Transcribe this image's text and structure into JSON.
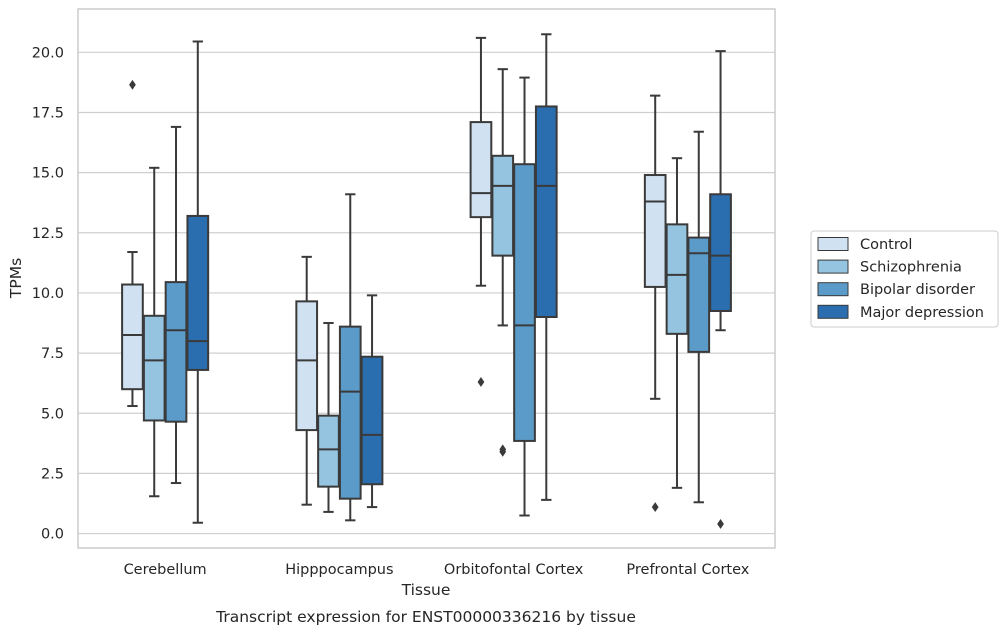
{
  "chart_data": {
    "type": "box",
    "caption": "Transcript expression for ENST00000336216 by tissue",
    "xlabel": "Tissue",
    "ylabel": "TPMs",
    "ylim": [
      -0.6,
      21.8
    ],
    "yticks": [
      "0.0",
      "2.5",
      "5.0",
      "7.5",
      "10.0",
      "12.5",
      "15.0",
      "17.5",
      "20.0"
    ],
    "grid": true,
    "legend_position": "right",
    "categories": [
      "Cerebellum",
      "Hipppocampus",
      "Orbitofontal Cortex",
      "Prefrontal Cortex"
    ],
    "series": [
      {
        "name": "Control",
        "color": "#d0e1f2",
        "boxes": [
          {
            "whislo": 5.3,
            "q1": 6.0,
            "med": 8.25,
            "q3": 10.35,
            "whishi": 11.7,
            "fliers": [
              18.65
            ]
          },
          {
            "whislo": 1.2,
            "q1": 4.3,
            "med": 7.2,
            "q3": 9.65,
            "whishi": 11.5,
            "fliers": []
          },
          {
            "whislo": 10.3,
            "q1": 13.15,
            "med": 14.15,
            "q3": 17.1,
            "whishi": 20.6,
            "fliers": [
              6.3
            ]
          },
          {
            "whislo": 5.6,
            "q1": 10.25,
            "med": 13.8,
            "q3": 14.9,
            "whishi": 18.2,
            "fliers": [
              1.1
            ]
          }
        ]
      },
      {
        "name": "Schizophrenia",
        "color": "#94c4df",
        "boxes": [
          {
            "whislo": 1.55,
            "q1": 4.7,
            "med": 7.2,
            "q3": 9.05,
            "whishi": 15.2,
            "fliers": []
          },
          {
            "whislo": 0.9,
            "q1": 1.95,
            "med": 3.5,
            "q3": 4.9,
            "whishi": 8.75,
            "fliers": []
          },
          {
            "whislo": 8.65,
            "q1": 11.55,
            "med": 14.45,
            "q3": 15.7,
            "whishi": 19.3,
            "fliers": [
              3.4,
              3.5
            ]
          },
          {
            "whislo": 1.9,
            "q1": 8.3,
            "med": 10.75,
            "q3": 12.85,
            "whishi": 15.6,
            "fliers": []
          }
        ]
      },
      {
        "name": "Bipolar disorder",
        "color": "#5a9bc9",
        "boxes": [
          {
            "whislo": 2.1,
            "q1": 4.65,
            "med": 8.45,
            "q3": 10.45,
            "whishi": 16.9,
            "fliers": []
          },
          {
            "whislo": 0.55,
            "q1": 1.45,
            "med": 5.9,
            "q3": 8.6,
            "whishi": 14.1,
            "fliers": []
          },
          {
            "whislo": 0.75,
            "q1": 3.85,
            "med": 8.65,
            "q3": 15.35,
            "whishi": 18.95,
            "fliers": []
          },
          {
            "whislo": 1.3,
            "q1": 7.55,
            "med": 11.65,
            "q3": 12.3,
            "whishi": 16.7,
            "fliers": []
          }
        ]
      },
      {
        "name": "Major depression",
        "color": "#2a6eaf",
        "boxes": [
          {
            "whislo": 0.45,
            "q1": 6.8,
            "med": 8.0,
            "q3": 13.2,
            "whishi": 20.45,
            "fliers": []
          },
          {
            "whislo": 1.1,
            "q1": 2.05,
            "med": 4.1,
            "q3": 7.35,
            "whishi": 9.9,
            "fliers": []
          },
          {
            "whislo": 1.4,
            "q1": 9.0,
            "med": 14.45,
            "q3": 17.75,
            "whishi": 20.75,
            "fliers": []
          },
          {
            "whislo": 8.45,
            "q1": 9.25,
            "med": 11.55,
            "q3": 14.1,
            "whishi": 20.05,
            "fliers": [
              0.4
            ]
          }
        ]
      }
    ],
    "legend": [
      "Control",
      "Schizophrenia",
      "Bipolar disorder",
      "Major depression"
    ],
    "style": {
      "grid_color": "#cfcfcf",
      "frame_color": "#cccccc",
      "line_color": "#3a3a3a",
      "text_color": "#262626"
    }
  }
}
